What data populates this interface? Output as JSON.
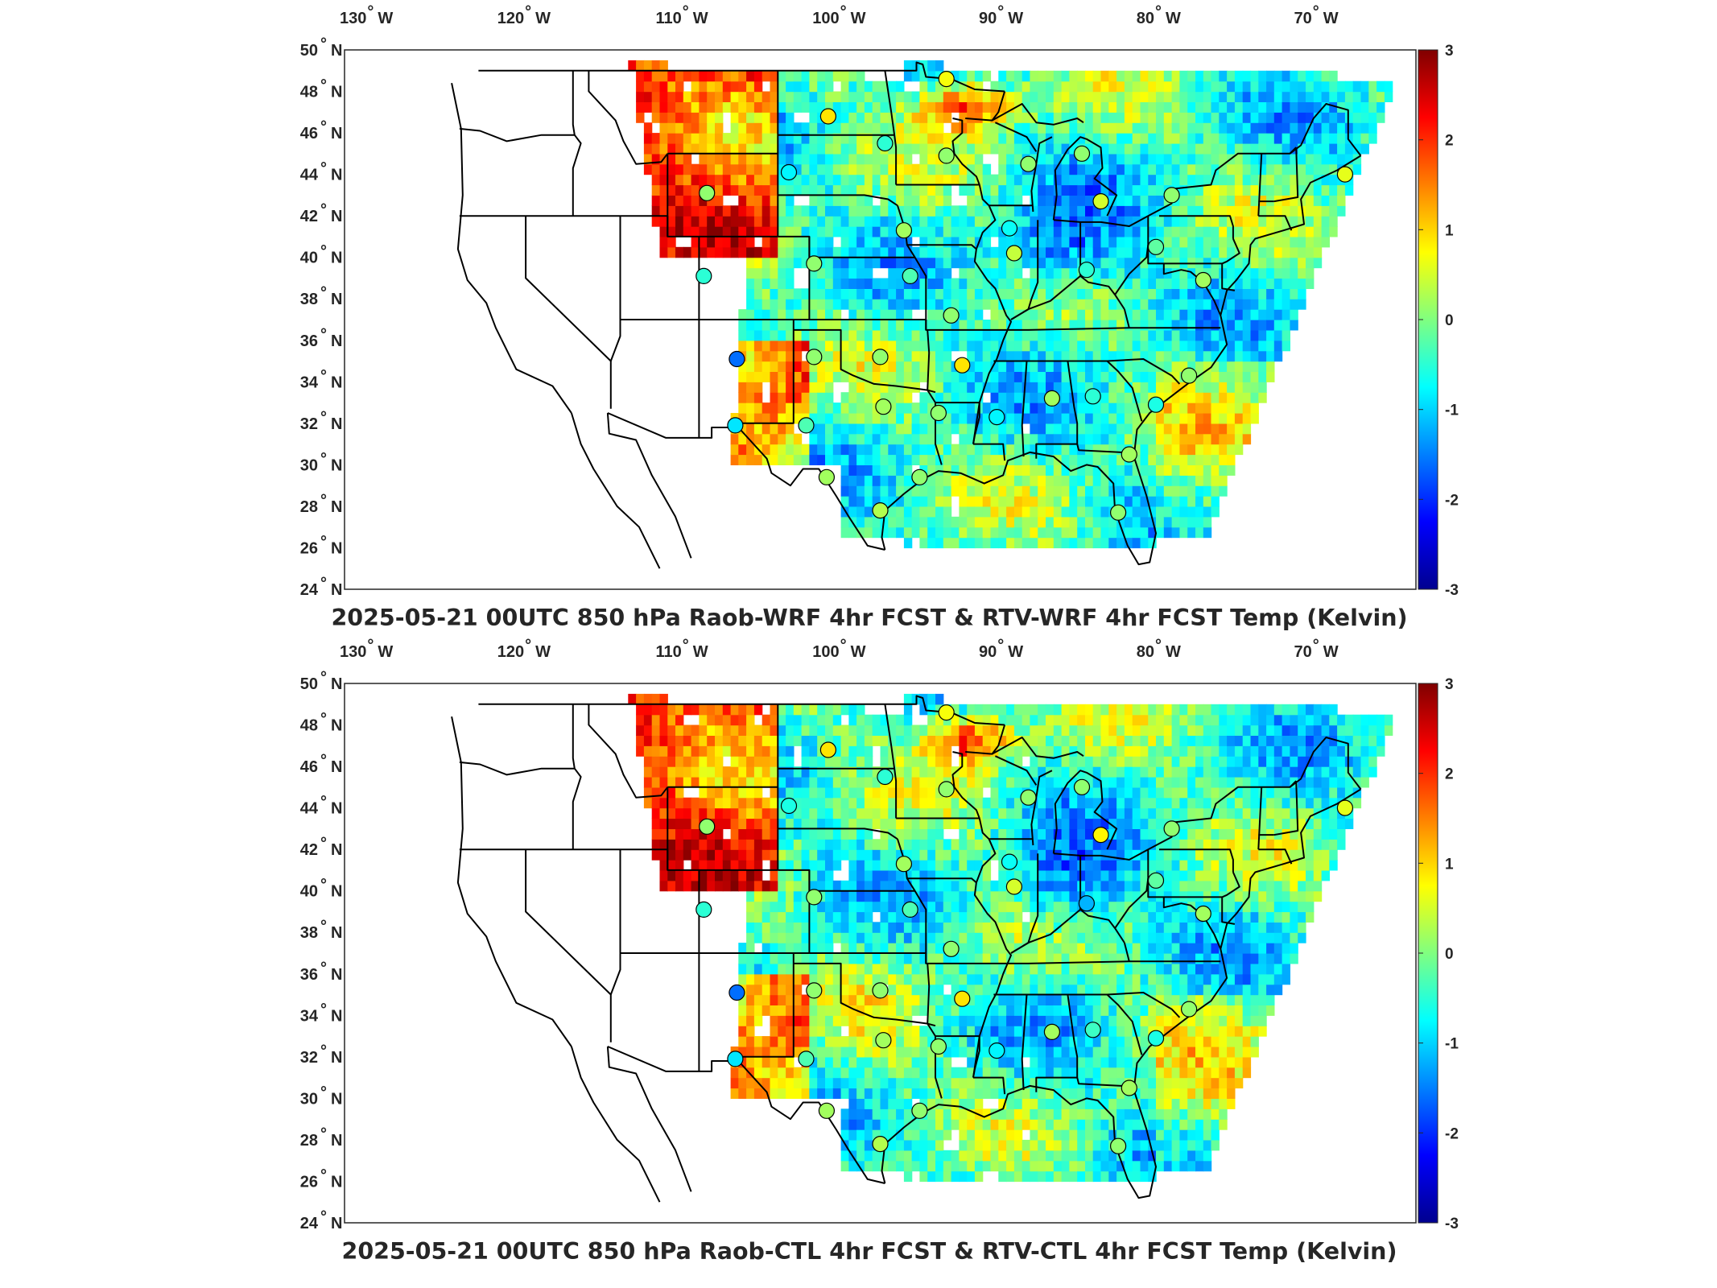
{
  "figure": {
    "panels": [
      {
        "title": "2025-05-21 00UTC 850 hPa Raob-WRF 4hr FCST & RTV-WRF 4hr FCST Temp (Kelvin)"
      },
      {
        "title": "2025-05-21 00UTC 850 hPa Raob-CTL 4hr FCST & RTV-CTL 4hr FCST Temp (Kelvin)"
      }
    ],
    "lon_tick_labels": [
      "130",
      "120",
      "110",
      "100",
      "90",
      "80",
      "70"
    ],
    "lon_hemisphere": "W",
    "lat_tick_labels": [
      "50",
      "48",
      "46",
      "44",
      "42",
      "40",
      "38",
      "36",
      "34",
      "32",
      "30",
      "28",
      "26",
      "24"
    ],
    "lat_hemisphere": "N",
    "degree_symbol": "°",
    "colorbar": {
      "tick_labels": [
        "3",
        "2",
        "1",
        "0",
        "-1",
        "-2",
        "-3"
      ],
      "min": -3,
      "max": 3,
      "colormap": "jet",
      "colors": [
        "#00008f",
        "#0000ff",
        "#00ffff",
        "#80ff80",
        "#ffff00",
        "#ff0000",
        "#800000"
      ]
    },
    "map_extent": {
      "lon_min": -131.5,
      "lon_max": -63.5,
      "lat_min": 24,
      "lat_max": 50
    },
    "field_description_colors": {
      "land_outline": "#000000",
      "background": "#ffffff"
    }
  }
}
